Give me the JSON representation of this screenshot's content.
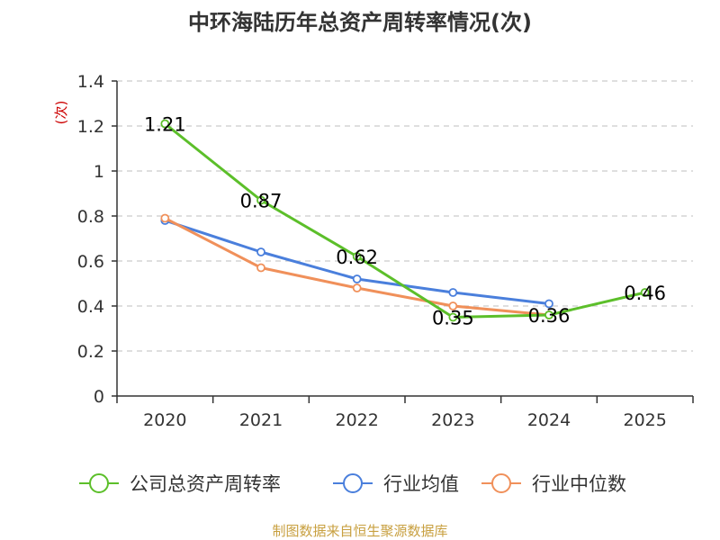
{
  "chart_data": {
    "type": "line",
    "title": "中环海陆历年总资产周转率情况(次)",
    "ylabel": "(次)",
    "xlabel": "",
    "categories": [
      "2020",
      "2021",
      "2022",
      "2023",
      "2024",
      "2025"
    ],
    "ylim": [
      0,
      1.4
    ],
    "yticks": [
      "0",
      "0.2",
      "0.4",
      "0.6",
      "0.8",
      "1",
      "1.2",
      "1.4"
    ],
    "grid": true,
    "legend_position": "bottom",
    "series": [
      {
        "name": "公司总资产周转率",
        "values": [
          1.21,
          0.87,
          0.62,
          0.35,
          0.36,
          0.46
        ],
        "labels": [
          "1.21",
          "0.87",
          "0.62",
          "0.35",
          "0.36",
          "0.46"
        ],
        "color": "#5cbf2a"
      },
      {
        "name": "行业均值",
        "values": [
          0.78,
          0.64,
          0.52,
          0.46,
          0.41,
          null
        ],
        "color": "#4a7fdc"
      },
      {
        "name": "行业中位数",
        "values": [
          0.79,
          0.57,
          0.48,
          0.4,
          0.36,
          null
        ],
        "color": "#f0905a"
      }
    ],
    "source": "制图数据来自恒生聚源数据库"
  }
}
